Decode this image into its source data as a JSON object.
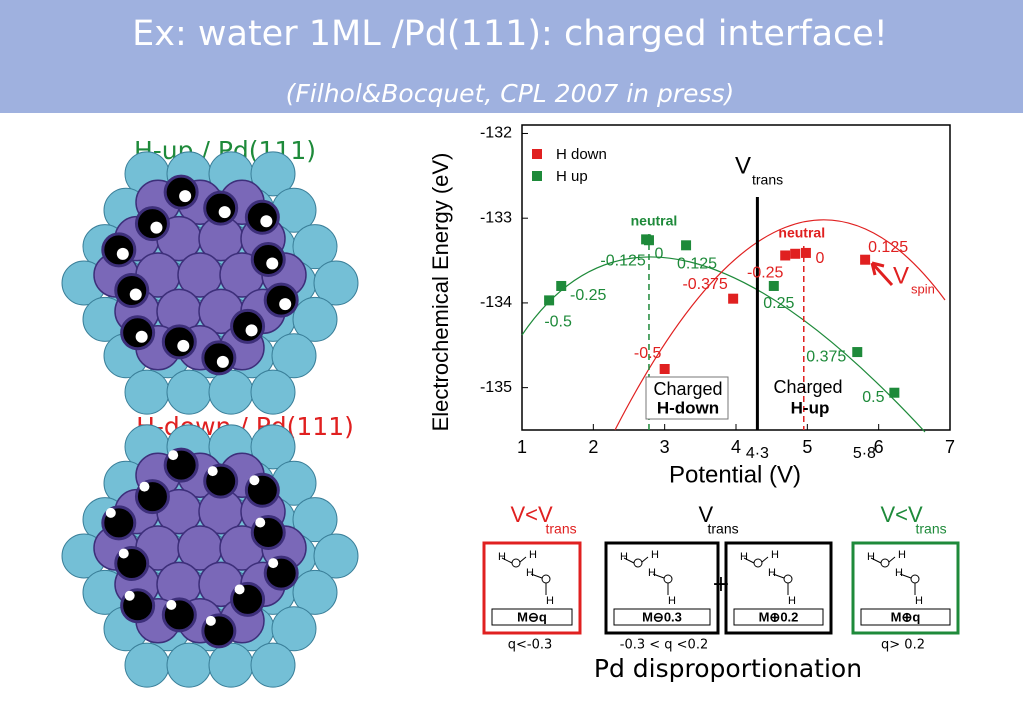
{
  "header": {
    "title": "Ex: water 1ML /Pd(111): charged interface!",
    "subtitle": "(Filhol&Bocquet, CPL 2007 in press)"
  },
  "left": {
    "top_label": "H-up / Pd(111)",
    "bottom_label": "H-down / Pd(111)"
  },
  "chart_data": {
    "type": "scatter",
    "xlabel": "Potential (V)",
    "ylabel": "Electrochemical Energy (eV)",
    "xlim": [
      1,
      7
    ],
    "ylim": [
      -135.5,
      -131.9
    ],
    "xticks": [
      1,
      2,
      3,
      4,
      5,
      6,
      7
    ],
    "yticks": [
      -132,
      -133,
      -134,
      -135
    ],
    "extra_xticks": [
      {
        "value": 4.3,
        "label": "4·3"
      },
      {
        "value": 5.8,
        "label": "5·8"
      }
    ],
    "legend": "upper left",
    "series": [
      {
        "name": "H down",
        "color": "#e02020",
        "x": [
          3.0,
          3.96,
          4.69,
          4.83,
          4.98,
          5.81
        ],
        "values": [
          -134.78,
          -133.95,
          -133.44,
          -133.42,
          -133.41,
          -133.49
        ],
        "labels": [
          "-0.5",
          "-0.375",
          "-0.25",
          null,
          "0",
          "0.125"
        ]
      },
      {
        "name": "H up",
        "color": "#1e8a3a",
        "x": [
          1.38,
          1.55,
          2.74,
          2.78,
          3.3,
          4.53,
          5.7,
          6.22
        ],
        "values": [
          -133.97,
          -133.8,
          -133.25,
          -133.26,
          -133.32,
          -133.8,
          -134.58,
          -135.06
        ],
        "labels": [
          "-0.5",
          "-0.25",
          "-0.125",
          "0",
          "0.125",
          "0.25",
          "0.375",
          "0.5"
        ]
      }
    ],
    "neutral": [
      {
        "text": "neutral",
        "x": 2.78
      },
      {
        "text": "neutral",
        "x": 4.95
      }
    ],
    "vtrans": {
      "text": "V",
      "sub": "trans"
    },
    "vspin": {
      "text": "V",
      "sub": "spin"
    },
    "charged_down": [
      "Charged",
      "H-down"
    ],
    "charged_up": [
      "Charged",
      "H-up"
    ]
  },
  "diagram": {
    "headers": [
      {
        "text": "V<V",
        "sub": "trans"
      },
      {
        "text": "V",
        "sub": "trans"
      },
      {
        "text": "V<V",
        "sub": "trans"
      }
    ],
    "panels": [
      {
        "atoms": [
          "H",
          "H",
          "H",
          "H"
        ],
        "charge": "M⊖q"
      },
      {
        "atoms": [
          "H",
          "H",
          "H",
          "H"
        ],
        "charge": "M⊖0.3"
      },
      {
        "atoms": [
          "H",
          "H",
          "H",
          "H"
        ],
        "charge": "M⊕0.2"
      },
      {
        "atoms": [
          "H",
          "H",
          "H",
          "H"
        ],
        "charge": "M⊕q"
      }
    ],
    "plus": "+",
    "captions": [
      "q<-0.3",
      "-0.3 < q <0.2",
      "q> 0.2"
    ],
    "footer": "Pd disproportionation"
  }
}
